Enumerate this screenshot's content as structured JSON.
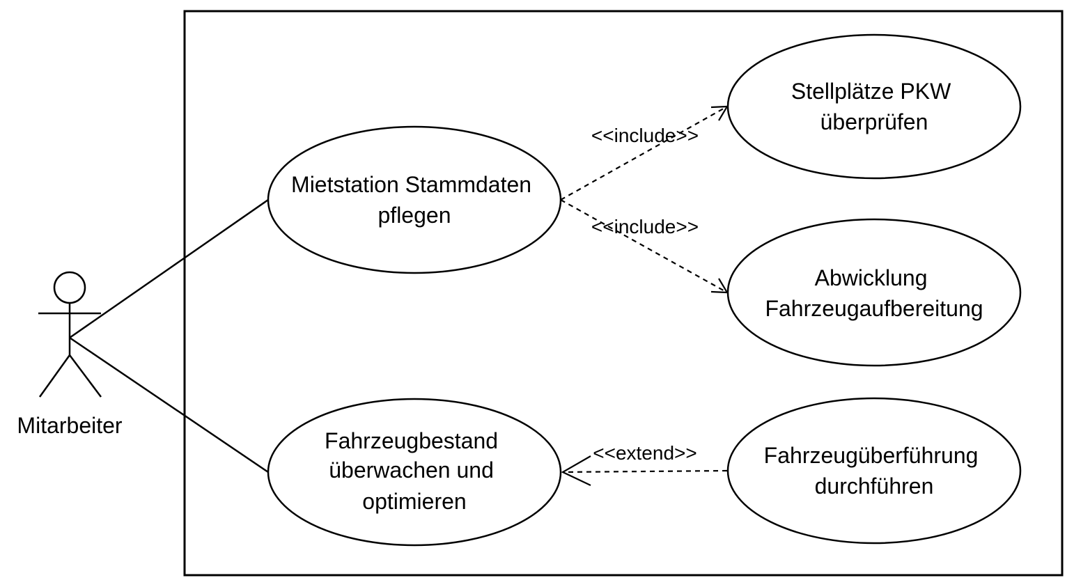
{
  "actor": {
    "name": "Mitarbeiter"
  },
  "use_cases": {
    "stammdaten": {
      "lines": [
        "Mietstation Stammdaten",
        "pflegen"
      ]
    },
    "bestand": {
      "lines": [
        "Fahrzeugbestand",
        "überwachen und",
        "optimieren"
      ]
    },
    "stellplaetze": {
      "lines": [
        "Stellplätze PKW",
        "überprüfen"
      ]
    },
    "aufbereitung": {
      "lines": [
        "Abwicklung",
        "Fahrzeugaufbereitung"
      ]
    },
    "ueberfuehrung": {
      "lines": [
        "Fahrzeugüberführung",
        "durchführen"
      ]
    }
  },
  "relations": {
    "include_1": "<<include>>",
    "include_2": "<<include>>",
    "extend": "<<extend>>"
  }
}
